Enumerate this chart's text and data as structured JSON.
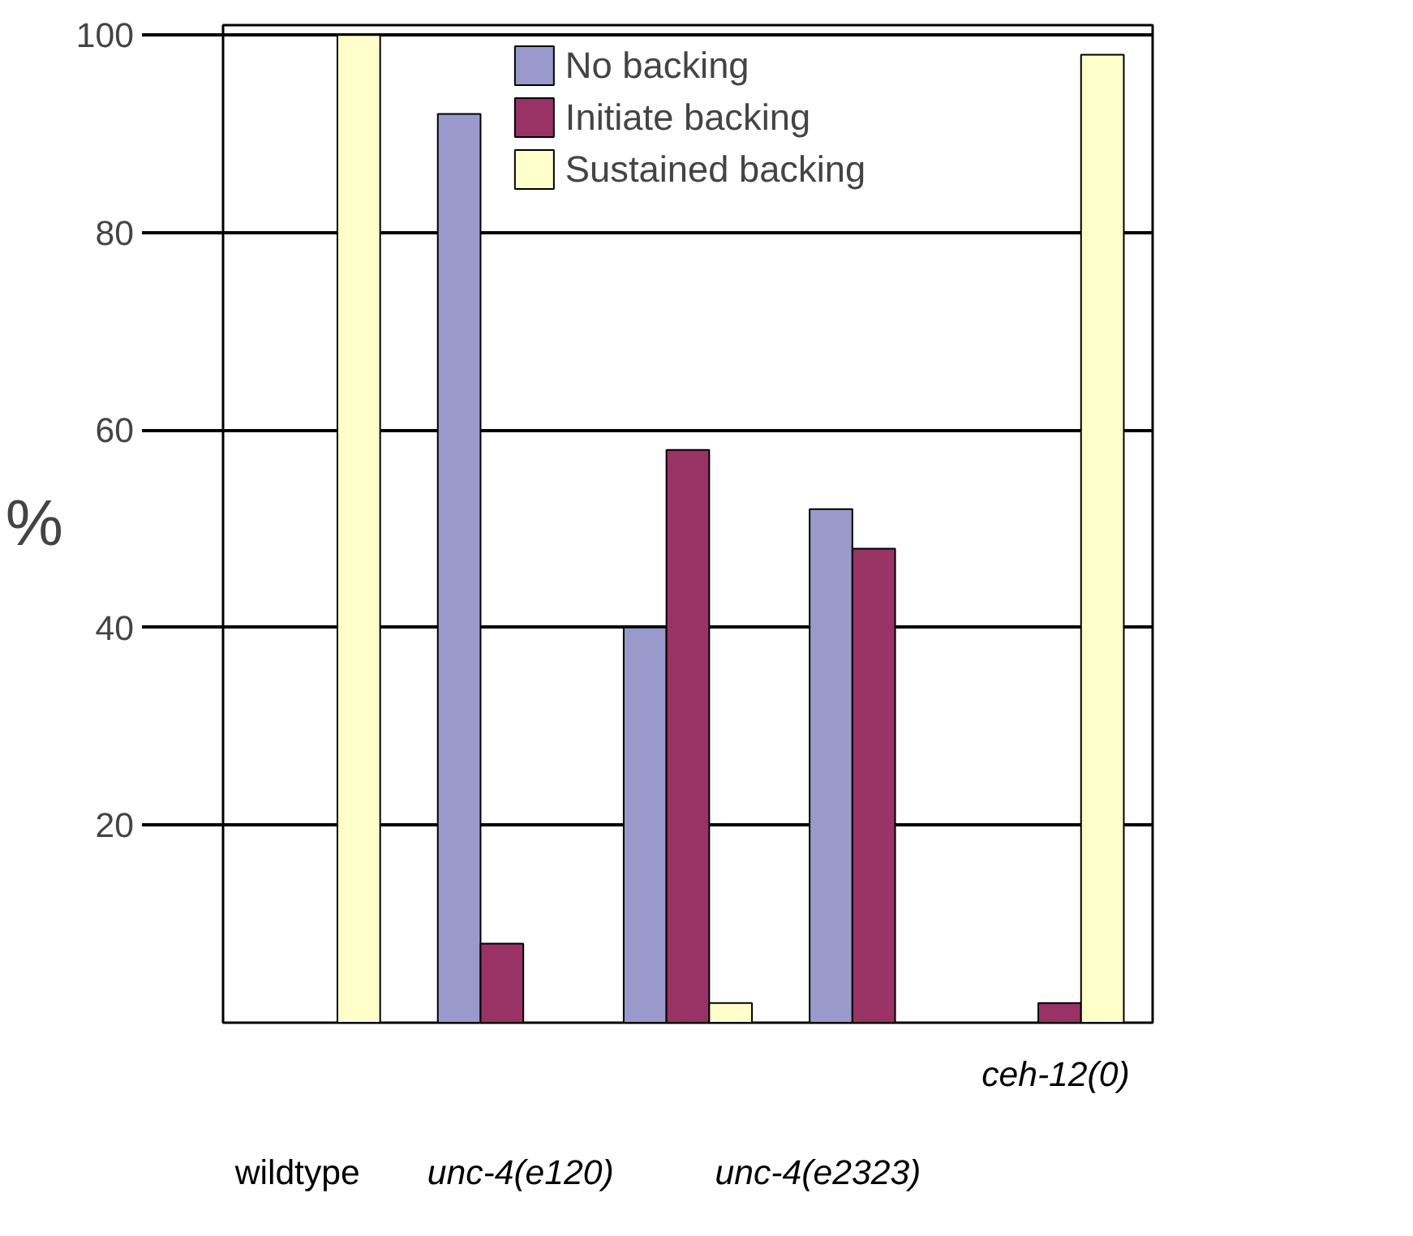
{
  "chart_data": {
    "type": "bar",
    "ylabel": "%",
    "categories": [
      null,
      null,
      null,
      null,
      null
    ],
    "series": [
      {
        "name": "No backing",
        "color": "#9999cc",
        "values": [
          null,
          92,
          40,
          52,
          null
        ]
      },
      {
        "name": "Initiate backing",
        "color": "#993366",
        "values": [
          null,
          8,
          58,
          48,
          2
        ]
      },
      {
        "name": "Sustained backing",
        "color": "#ffffcc",
        "values": [
          100,
          null,
          2,
          null,
          98
        ]
      }
    ],
    "ylim": [
      0,
      101
    ],
    "yticks": [
      20,
      40,
      60,
      80,
      100
    ],
    "grid": "y",
    "legend": "top",
    "annotations": [
      "wildtype",
      "unc-4(e120)",
      "unc-4(e2323)",
      "ceh-12(0)"
    ]
  }
}
